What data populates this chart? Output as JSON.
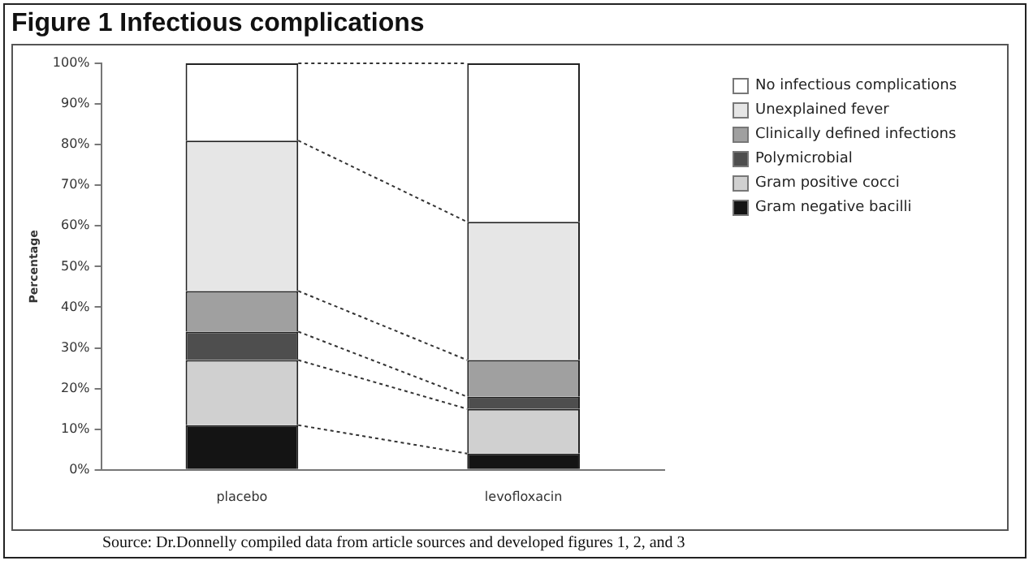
{
  "chart_data": {
    "type": "bar",
    "title": "Figure 1 Infectious complications",
    "ylabel": "Percentage",
    "categories": [
      "placebo",
      "levofloxacin"
    ],
    "stacked": true,
    "ylim": [
      0,
      100
    ],
    "yticks": [
      {
        "value": 0,
        "label": "0%"
      },
      {
        "value": 10,
        "label": "10%"
      },
      {
        "value": 20,
        "label": "20%"
      },
      {
        "value": 30,
        "label": "30%"
      },
      {
        "value": 40,
        "label": "40%"
      },
      {
        "value": 50,
        "label": "50%"
      },
      {
        "value": 60,
        "label": "60%"
      },
      {
        "value": 70,
        "label": "70%"
      },
      {
        "value": 80,
        "label": "80%"
      },
      {
        "value": 90,
        "label": "90%"
      },
      {
        "value": 100,
        "label": "100%"
      }
    ],
    "grid": false,
    "legend": "right",
    "series": [
      {
        "name": "Gram negative bacilli",
        "color": "#141414",
        "values": [
          11,
          4
        ]
      },
      {
        "name": "Gram positive cocci",
        "color": "#d0d0d0",
        "values": [
          16,
          11
        ]
      },
      {
        "name": "Polymicrobial",
        "color": "#4e4e4e",
        "values": [
          7,
          3
        ]
      },
      {
        "name": "Clinically defined infections",
        "color": "#a0a0a0",
        "values": [
          10,
          9
        ]
      },
      {
        "name": "Unexplained fever",
        "color": "#e6e6e6",
        "values": [
          37,
          34
        ]
      },
      {
        "name": "No infectious complications",
        "color": "#ffffff",
        "values": [
          19,
          39
        ]
      }
    ],
    "annotations": [
      "Source: Dr.Donnelly compiled data from article sources and developed figures 1, 2, and 3"
    ]
  }
}
